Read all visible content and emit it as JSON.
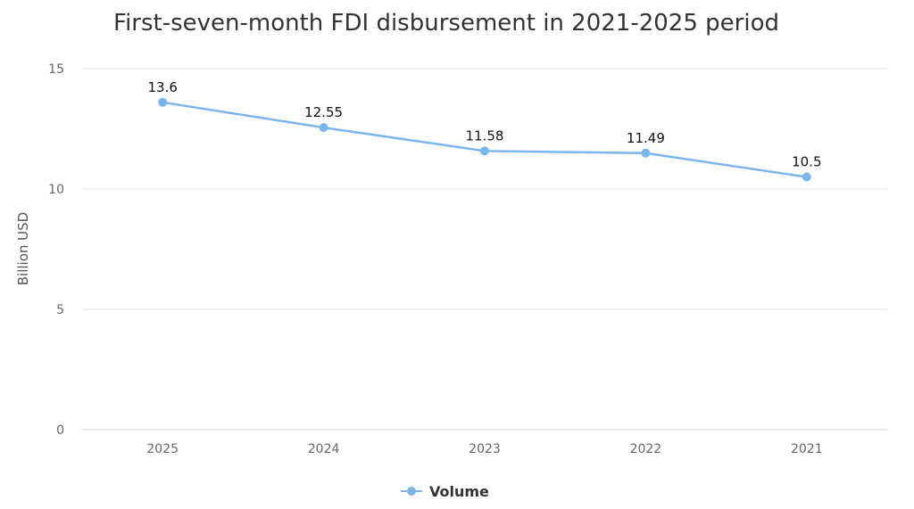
{
  "chart_data": {
    "type": "line",
    "title": "First-seven-month FDI disbursement in 2021-2025 period",
    "ylabel": "Billion USD",
    "xlabel": "",
    "categories": [
      "2025",
      "2024",
      "2023",
      "2022",
      "2021"
    ],
    "series": [
      {
        "name": "Volume",
        "values": [
          13.6,
          12.55,
          11.58,
          11.49,
          10.5
        ],
        "color": "#7cb5ec"
      }
    ],
    "data_labels": [
      "13.6",
      "12.55",
      "11.58",
      "11.49",
      "10.5"
    ],
    "ylim": [
      0,
      15
    ],
    "yticks": [
      0,
      5,
      10,
      15
    ],
    "grid": true,
    "legend": "bottom-center"
  }
}
